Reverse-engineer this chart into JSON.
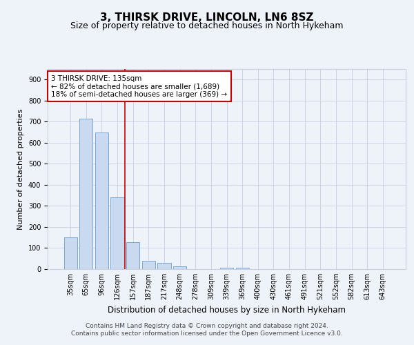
{
  "title1": "3, THIRSK DRIVE, LINCOLN, LN6 8SZ",
  "title2": "Size of property relative to detached houses in North Hykeham",
  "xlabel": "Distribution of detached houses by size in North Hykeham",
  "ylabel": "Number of detached properties",
  "categories": [
    "35sqm",
    "65sqm",
    "96sqm",
    "126sqm",
    "157sqm",
    "187sqm",
    "217sqm",
    "248sqm",
    "278sqm",
    "309sqm",
    "339sqm",
    "369sqm",
    "400sqm",
    "430sqm",
    "461sqm",
    "491sqm",
    "521sqm",
    "552sqm",
    "582sqm",
    "613sqm",
    "643sqm"
  ],
  "values": [
    150,
    715,
    650,
    340,
    128,
    40,
    28,
    12,
    0,
    0,
    8,
    8,
    0,
    0,
    0,
    0,
    0,
    0,
    0,
    0,
    0
  ],
  "bar_color": "#c9d9f0",
  "bar_edge_color": "#7aa8d4",
  "vline_x_idx": 3.5,
  "vline_color": "#cc0000",
  "annotation_text": "3 THIRSK DRIVE: 135sqm\n← 82% of detached houses are smaller (1,689)\n18% of semi-detached houses are larger (369) →",
  "annotation_box_color": "#ffffff",
  "annotation_box_edge": "#cc0000",
  "ylim": [
    0,
    950
  ],
  "yticks": [
    0,
    100,
    200,
    300,
    400,
    500,
    600,
    700,
    800,
    900
  ],
  "footer_line1": "Contains HM Land Registry data © Crown copyright and database right 2024.",
  "footer_line2": "Contains public sector information licensed under the Open Government Licence v3.0.",
  "bg_color": "#eef2f9",
  "plot_bg_color": "#eef2f9",
  "grid_color": "#c8d0e0",
  "title1_fontsize": 11,
  "title2_fontsize": 9,
  "xlabel_fontsize": 8.5,
  "ylabel_fontsize": 8,
  "tick_fontsize": 7,
  "annot_fontsize": 7.5,
  "footer_fontsize": 6.5
}
